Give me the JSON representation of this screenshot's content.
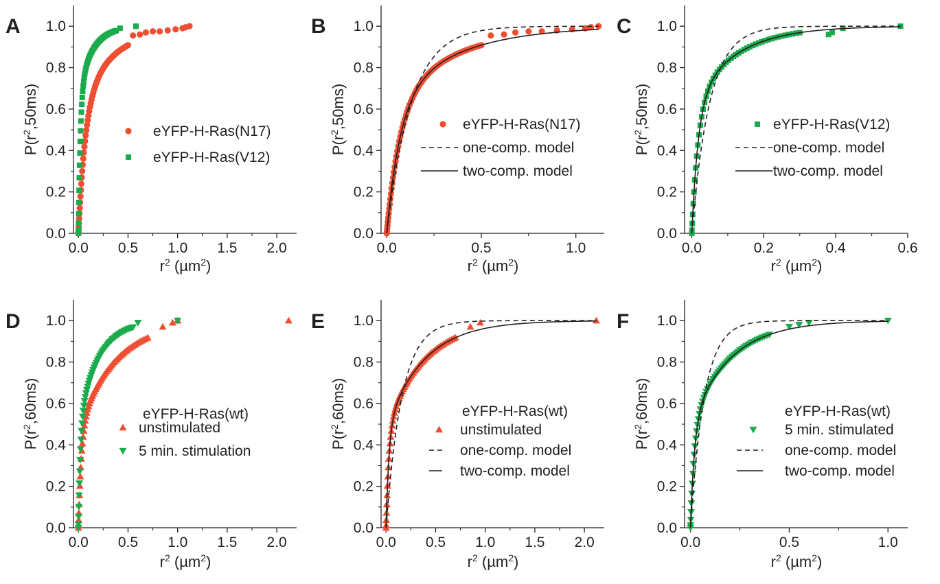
{
  "colors": {
    "red": "#ee4e31",
    "green": "#1aab4c",
    "ink": "#231f20"
  },
  "chart_data": [
    {
      "panel": "A",
      "type": "scatter",
      "xlabel": {
        "base": "r",
        "sup": "2",
        "unit_pre": " (µm",
        "unit_sup": "2",
        "unit_post": ")"
      },
      "ylabel": {
        "pre": "P(r",
        "sup": "2",
        "post": ",50ms)"
      },
      "xlim": [
        -0.05,
        2.2
      ],
      "ylim": [
        0,
        1.1
      ],
      "xticks": [
        0.0,
        0.5,
        1.0,
        1.5,
        2.0
      ],
      "xtick_labels": [
        "0.0",
        "0.5",
        "1.0",
        "1.5",
        "2.0"
      ],
      "yticks": [
        0,
        0.2,
        0.4,
        0.6,
        0.8,
        1.0
      ],
      "ytick_labels": [
        "0.0",
        "0.2",
        "0.4",
        "0.6",
        "0.8",
        "1.0"
      ],
      "legend": [
        {
          "label": "eYFP-H-Ras(N17)",
          "marker": "circle",
          "color": "#ee4e31"
        },
        {
          "label": "eYFP-H-Ras(V12)",
          "marker": "square",
          "color": "#1aab4c"
        }
      ],
      "series": [
        {
          "name": "eYFP-H-Ras(N17)",
          "marker": "circle",
          "color": "#ee4e31",
          "model": {
            "a": 0.62,
            "k1": 0.07,
            "k2": 0.35
          },
          "xmax": 0.5,
          "n": 60,
          "extra": [
            [
              0.55,
              0.955
            ],
            [
              0.62,
              0.96
            ],
            [
              0.68,
              0.97
            ],
            [
              0.75,
              0.975
            ],
            [
              0.82,
              0.975
            ],
            [
              0.9,
              0.98
            ],
            [
              0.98,
              0.985
            ],
            [
              1.05,
              0.99
            ],
            [
              1.08,
              0.995
            ],
            [
              1.12,
              1.0
            ]
          ]
        },
        {
          "name": "eYFP-H-Ras(V12)",
          "marker": "square",
          "color": "#1aab4c",
          "model": {
            "a": 0.68,
            "k1": 0.02,
            "k2": 0.14
          },
          "xmax": 0.38,
          "n": 55,
          "extra": [
            [
              0.42,
              0.99
            ],
            [
              0.58,
              1.0
            ]
          ]
        }
      ]
    },
    {
      "panel": "B",
      "type": "scatter",
      "xlabel": {
        "base": "r",
        "sup": "2",
        "unit_pre": " (µm",
        "unit_sup": "2",
        "unit_post": ")"
      },
      "ylabel": {
        "pre": "P(r",
        "sup": "2",
        "post": ",50ms)"
      },
      "xlim": [
        -0.03,
        1.15
      ],
      "ylim": [
        0,
        1.1
      ],
      "xticks": [
        0.0,
        0.5,
        1.0
      ],
      "xtick_labels": [
        "0.0",
        "0.5",
        "1.0"
      ],
      "yticks": [
        0,
        0.2,
        0.4,
        0.6,
        0.8,
        1.0
      ],
      "ytick_labels": [
        "0.0",
        "0.2",
        "0.4",
        "0.6",
        "0.8",
        "1.0"
      ],
      "legend": [
        {
          "label": "eYFP-H-Ras(N17)",
          "marker": "circle",
          "color": "#ee4e31"
        },
        {
          "label": "one-comp. model",
          "line": "dashed"
        },
        {
          "label": "two-comp. model",
          "line": "solid"
        }
      ],
      "series": [
        {
          "name": "eYFP-H-Ras(N17)",
          "marker": "circle",
          "color": "#ee4e31",
          "model": {
            "a": 0.62,
            "k1": 0.07,
            "k2": 0.35
          },
          "xmax": 0.5,
          "n": 70,
          "extra": [
            [
              0.55,
              0.955
            ],
            [
              0.62,
              0.96
            ],
            [
              0.68,
              0.97
            ],
            [
              0.75,
              0.975
            ],
            [
              0.82,
              0.975
            ],
            [
              0.9,
              0.98
            ],
            [
              0.98,
              0.985
            ],
            [
              1.05,
              0.99
            ],
            [
              1.08,
              0.995
            ],
            [
              1.12,
              1.0
            ]
          ]
        }
      ],
      "model_one": {
        "k": 0.13
      },
      "model_two": {
        "a": 0.62,
        "k1": 0.07,
        "k2": 0.35
      }
    },
    {
      "panel": "C",
      "type": "scatter",
      "xlabel": {
        "base": "r",
        "sup": "2",
        "unit_pre": " (µm",
        "unit_sup": "2",
        "unit_post": ")"
      },
      "ylabel": {
        "pre": "P(r",
        "sup": "2",
        "post": ",50ms)"
      },
      "xlim": [
        -0.02,
        0.6
      ],
      "ylim": [
        0,
        1.1
      ],
      "xticks": [
        0.0,
        0.2,
        0.4,
        0.6
      ],
      "xtick_labels": [
        "0.0",
        "0.2",
        "0.4",
        "0.6"
      ],
      "yticks": [
        0,
        0.2,
        0.4,
        0.6,
        0.8,
        1.0
      ],
      "ytick_labels": [
        "0.0",
        "0.2",
        "0.4",
        "0.6",
        "0.8",
        "1.0"
      ],
      "legend": [
        {
          "label": "eYFP-H-Ras(V12)",
          "marker": "square",
          "color": "#1aab4c"
        },
        {
          "label": "one-comp. model",
          "line": "dashed"
        },
        {
          "label": "two-comp. model",
          "line": "solid"
        }
      ],
      "series": [
        {
          "name": "eYFP-H-Ras(V12)",
          "marker": "square",
          "color": "#1aab4c",
          "model": {
            "a": 0.62,
            "k1": 0.018,
            "k2": 0.12
          },
          "xmax": 0.3,
          "n": 50,
          "extra": [
            [
              0.38,
              0.96
            ],
            [
              0.39,
              0.97
            ],
            [
              0.42,
              0.99
            ],
            [
              0.58,
              1.0
            ]
          ]
        }
      ],
      "model_one": {
        "k": 0.05
      },
      "model_two": {
        "a": 0.62,
        "k1": 0.018,
        "k2": 0.12
      }
    },
    {
      "panel": "D",
      "type": "scatter",
      "xlabel": {
        "base": "r",
        "sup": "2",
        "unit_pre": " (µm",
        "unit_sup": "2",
        "unit_post": ")"
      },
      "ylabel": {
        "pre": "P(r",
        "sup": "2",
        "post": ",60ms)"
      },
      "xlim": [
        -0.05,
        2.2
      ],
      "ylim": [
        0,
        1.1
      ],
      "xticks": [
        0.0,
        0.5,
        1.0,
        1.5,
        2.0
      ],
      "xtick_labels": [
        "0.0",
        "0.5",
        "1.0",
        "1.5",
        "2.0"
      ],
      "yticks": [
        0,
        0.2,
        0.4,
        0.6,
        0.8,
        1.0
      ],
      "ytick_labels": [
        "0.0",
        "0.2",
        "0.4",
        "0.6",
        "0.8",
        "1.0"
      ],
      "legend_title": "eYFP-H-Ras(wt)",
      "legend": [
        {
          "label": "unstimulated",
          "marker": "triangle-up",
          "color": "#ee4e31"
        },
        {
          "label": "5 min. stimulation",
          "marker": "triangle-down",
          "color": "#1aab4c"
        }
      ],
      "series": [
        {
          "name": "unstimulated",
          "marker": "triangle-up",
          "color": "#ee4e31",
          "model": {
            "a": 0.48,
            "k1": 0.03,
            "k2": 0.38
          },
          "xmax": 0.7,
          "n": 60,
          "extra": [
            [
              0.85,
              0.97
            ],
            [
              0.95,
              0.99
            ],
            [
              1.0,
              1.0
            ],
            [
              2.12,
              1.0
            ]
          ]
        },
        {
          "name": "5 min. stimulation",
          "marker": "triangle-down",
          "color": "#1aab4c",
          "model": {
            "a": 0.5,
            "k1": 0.02,
            "k2": 0.2
          },
          "xmax": 0.55,
          "n": 55,
          "extra": [
            [
              0.6,
              0.99
            ],
            [
              1.0,
              1.0
            ]
          ]
        }
      ]
    },
    {
      "panel": "E",
      "type": "scatter",
      "xlabel": {
        "base": "r",
        "sup": "2",
        "unit_pre": " (µm",
        "unit_sup": "2",
        "unit_post": ")"
      },
      "ylabel": {
        "pre": "P(r",
        "sup": "2",
        "post": ",60ms)"
      },
      "xlim": [
        -0.05,
        2.2
      ],
      "ylim": [
        0,
        1.1
      ],
      "xticks": [
        0.0,
        0.5,
        1.0,
        1.5,
        2.0
      ],
      "xtick_labels": [
        "0.0",
        "0.5",
        "1.0",
        "1.5",
        "2.0"
      ],
      "yticks": [
        0,
        0.2,
        0.4,
        0.6,
        0.8,
        1.0
      ],
      "ytick_labels": [
        "0.0",
        "0.2",
        "0.4",
        "0.6",
        "0.8",
        "1.0"
      ],
      "legend_title": "eYFP-H-Ras(wt)",
      "legend": [
        {
          "label": "unstimulated",
          "marker": "triangle-up",
          "color": "#ee4e31"
        },
        {
          "label": "one-comp. model",
          "line": "dashed"
        },
        {
          "label": "two-comp. model",
          "line": "solid"
        }
      ],
      "series": [
        {
          "name": "unstimulated",
          "marker": "triangle-up",
          "color": "#ee4e31",
          "model": {
            "a": 0.48,
            "k1": 0.03,
            "k2": 0.38
          },
          "xmax": 0.7,
          "n": 60,
          "extra": [
            [
              0.85,
              0.97
            ],
            [
              0.95,
              0.99
            ],
            [
              2.12,
              1.0
            ]
          ]
        }
      ],
      "model_one": {
        "k": 0.16
      },
      "model_two": {
        "a": 0.48,
        "k1": 0.03,
        "k2": 0.38
      }
    },
    {
      "panel": "F",
      "type": "scatter",
      "xlabel": {
        "base": "r",
        "sup": "2",
        "unit_pre": " (µm",
        "unit_sup": "2",
        "unit_post": ")"
      },
      "ylabel": {
        "pre": "P(r",
        "sup": "2",
        "post": ",60ms)"
      },
      "xlim": [
        -0.03,
        1.1
      ],
      "ylim": [
        0,
        1.1
      ],
      "xticks": [
        0.0,
        0.5,
        1.0
      ],
      "xtick_labels": [
        "0.0",
        "0.5",
        "1.0"
      ],
      "yticks": [
        0,
        0.2,
        0.4,
        0.6,
        0.8,
        1.0
      ],
      "ytick_labels": [
        "0.0",
        "0.2",
        "0.4",
        "0.6",
        "0.8",
        "1.0"
      ],
      "legend_title": "eYFP-H-Ras(wt)",
      "legend": [
        {
          "label": "5 min. stimulated",
          "marker": "triangle-down",
          "color": "#1aab4c"
        },
        {
          "label": "one-comp. model",
          "line": "dashed"
        },
        {
          "label": "two-comp. model",
          "line": "solid"
        }
      ],
      "series": [
        {
          "name": "5 min. stimulated",
          "marker": "triangle-down",
          "color": "#1aab4c",
          "model": {
            "a": 0.5,
            "k1": 0.02,
            "k2": 0.2
          },
          "xmax": 0.4,
          "n": 55,
          "extra": [
            [
              0.5,
              0.97
            ],
            [
              0.55,
              0.98
            ],
            [
              0.6,
              0.99
            ],
            [
              1.0,
              1.0
            ]
          ]
        }
      ],
      "model_one": {
        "k": 0.07
      },
      "model_two": {
        "a": 0.5,
        "k1": 0.02,
        "k2": 0.2
      }
    }
  ]
}
